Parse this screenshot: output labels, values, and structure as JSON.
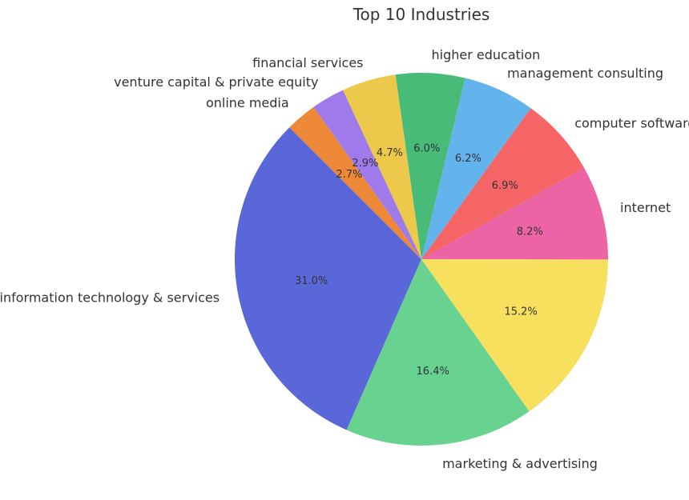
{
  "chart_data": {
    "type": "pie",
    "title": "Top 10 Industries",
    "start_angle_deg": 135,
    "direction": "counterclockwise",
    "slices": [
      {
        "label": "information technology & services",
        "value": 31.0,
        "pct_label": "31.0%",
        "color": "#5a67d8"
      },
      {
        "label": "marketing & advertising",
        "value": 16.4,
        "pct_label": "16.4%",
        "color": "#68d391"
      },
      {
        "label": "",
        "value": 15.2,
        "pct_label": "15.2%",
        "color": "#f6e05e"
      },
      {
        "label": "internet",
        "value": 8.2,
        "pct_label": "8.2%",
        "color": "#ed64a6"
      },
      {
        "label": "computer software",
        "value": 6.9,
        "pct_label": "6.9%",
        "color": "#f56565"
      },
      {
        "label": "management consulting",
        "value": 6.2,
        "pct_label": "6.2%",
        "color": "#63b3ed"
      },
      {
        "label": "higher education",
        "value": 6.0,
        "pct_label": "6.0%",
        "color": "#48bb78"
      },
      {
        "label": "financial services",
        "value": 4.7,
        "pct_label": "4.7%",
        "color": "#ecc94b"
      },
      {
        "label": "venture capital & private equity",
        "value": 2.9,
        "pct_label": "2.9%",
        "color": "#9f7aea"
      },
      {
        "label": "online media",
        "value": 2.7,
        "pct_label": "2.7%",
        "color": "#ed8936"
      }
    ]
  }
}
